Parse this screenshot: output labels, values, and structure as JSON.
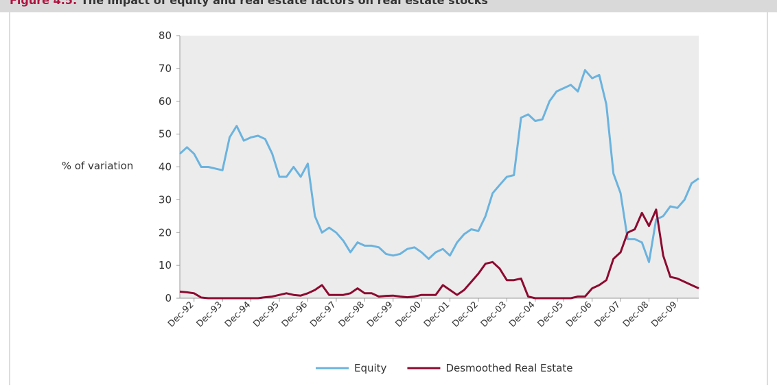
{
  "chart_data": {
    "type": "line",
    "figure_label": "Figure 4.5:",
    "title": "The impact of equity and real estate factors on real estate stocks",
    "y_label": "% of variation",
    "categories": [
      null,
      null,
      "Dec-92",
      null,
      null,
      null,
      "Dec-93",
      null,
      null,
      null,
      "Dec-94",
      null,
      null,
      null,
      "Dec-95",
      null,
      null,
      null,
      "Dec-96",
      null,
      null,
      null,
      "Dec-97",
      null,
      null,
      null,
      "Dec-98",
      null,
      null,
      null,
      "Dec-99",
      null,
      null,
      null,
      "Dec-00",
      null,
      null,
      null,
      "Dec-01",
      null,
      null,
      null,
      "Dec-02",
      null,
      null,
      null,
      "Dec-03",
      null,
      null,
      null,
      "Dec-04",
      null,
      null,
      null,
      "Dec-05",
      null,
      null,
      null,
      "Dec-06",
      null,
      null,
      null,
      "Dec-07",
      null,
      null,
      null,
      "Dec-08",
      null,
      null,
      null,
      "Dec-09",
      null,
      null,
      null
    ],
    "series": [
      {
        "name": "Equity",
        "color": "#6bb3de",
        "values": [
          44,
          46,
          44,
          40,
          40,
          39.5,
          39,
          49,
          52.5,
          48,
          49,
          49.5,
          48.5,
          44,
          37,
          37,
          40,
          37,
          41,
          25,
          20,
          21.5,
          20,
          17.5,
          14,
          17,
          16,
          16,
          15.5,
          13.5,
          13,
          13.5,
          15,
          15.5,
          14,
          12,
          14,
          15,
          13,
          17,
          19.5,
          21,
          20.5,
          25,
          32,
          34.5,
          37,
          37.5,
          55,
          56,
          54,
          54.5,
          60,
          63,
          64,
          65,
          63,
          69.5,
          67,
          68,
          59,
          38,
          32,
          18,
          18,
          17,
          11,
          24,
          25,
          28,
          27.5,
          30,
          35,
          36.5
        ]
      },
      {
        "name": "Desmoothed Real Estate",
        "color": "#8c0a30",
        "values": [
          2,
          1.8,
          1.5,
          0.2,
          0,
          0,
          0,
          0,
          0,
          0,
          0,
          0,
          0.3,
          0.5,
          1,
          1.5,
          1,
          0.8,
          1.5,
          2.5,
          4,
          1,
          1,
          1,
          1.5,
          3,
          1.5,
          1.5,
          0.5,
          0.7,
          0.8,
          0.5,
          0.3,
          0.5,
          1,
          1,
          1,
          4,
          2.5,
          1,
          2.5,
          5,
          7.5,
          10.5,
          11,
          9,
          5.5,
          5.5,
          6,
          0.5,
          0,
          0,
          0,
          0,
          0,
          0,
          0.5,
          0.5,
          3,
          4,
          5.5,
          12,
          14,
          20,
          21,
          26,
          22,
          27,
          13,
          6.5,
          6,
          5,
          4,
          3
        ]
      }
    ],
    "ylim": [
      0,
      80
    ],
    "yticks": [
      0,
      10,
      20,
      30,
      40,
      50,
      60,
      70,
      80
    ],
    "grid": false
  }
}
